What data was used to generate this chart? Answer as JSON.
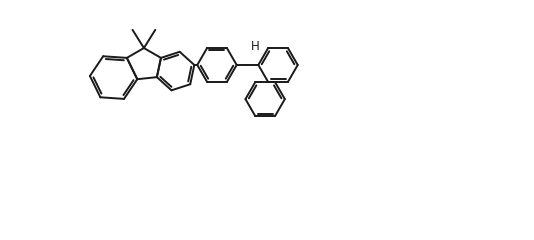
{
  "bg_color": "#ffffff",
  "line_color": "#1a1a1a",
  "line_width": 1.4,
  "figsize": [
    5.34,
    2.4
  ],
  "dpi": 100,
  "xlim": [
    0,
    10.7
  ],
  "ylim": [
    -1.5,
    4.8
  ]
}
